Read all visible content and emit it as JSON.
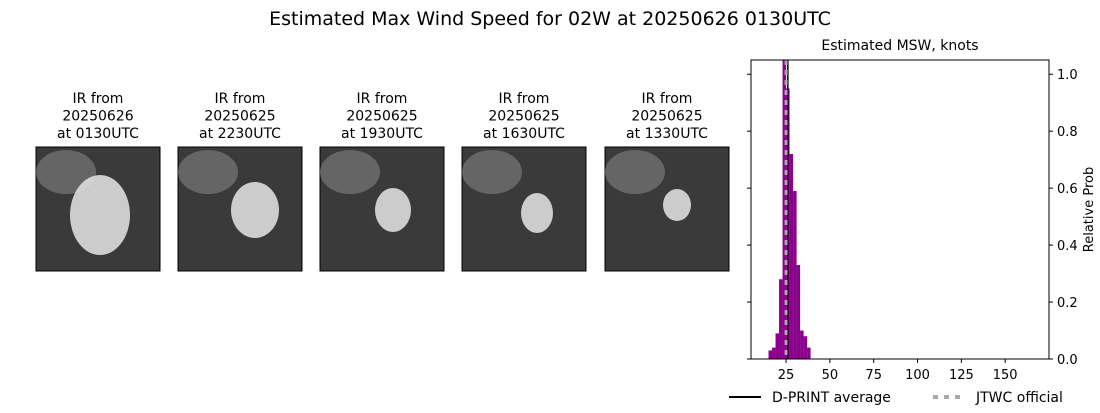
{
  "title": "Estimated Max Wind Speed for 02W at 20250626 0130UTC",
  "panels": [
    {
      "lines": [
        "IR from",
        "20250626",
        "at 0130UTC"
      ]
    },
    {
      "lines": [
        "IR from",
        "20250625",
        "at 2230UTC"
      ]
    },
    {
      "lines": [
        "IR from",
        "20250625",
        "at 1930UTC"
      ]
    },
    {
      "lines": [
        "IR from",
        "20250625",
        "at 1630UTC"
      ]
    },
    {
      "lines": [
        "IR from",
        "20250625",
        "at 1330UTC"
      ]
    }
  ],
  "chart_data": {
    "type": "histogram",
    "title": "Estimated MSW, knots",
    "y_label": "Relative Prob",
    "bins": [
      15,
      17,
      19,
      21,
      23,
      25,
      27,
      29,
      31,
      33,
      35,
      37,
      39
    ],
    "values": [
      0.03,
      0.04,
      0.09,
      0.28,
      1.05,
      0.95,
      0.72,
      0.59,
      0.33,
      0.1,
      0.08,
      0.04
    ],
    "color": "#8b008b",
    "xlim": [
      5,
      175
    ],
    "xticks": [
      25,
      50,
      75,
      100,
      125,
      150
    ],
    "ylim": [
      0,
      1.05
    ],
    "yticks": [
      {
        "value": 0,
        "label": "0.0"
      },
      {
        "value": 0.2,
        "label": "0.2"
      },
      {
        "value": 0.4,
        "label": "0.4"
      },
      {
        "value": 0.6,
        "label": "0.6"
      },
      {
        "value": 0.8,
        "label": "0.8"
      },
      {
        "value": 1,
        "label": "1.0"
      }
    ],
    "lines": [
      {
        "name": "D-PRINT average",
        "value": 26,
        "color": "#000000",
        "dashed": false
      },
      {
        "name": "JTWC official",
        "value": 25,
        "color": "#a9a9a9",
        "dashed": true
      }
    ]
  }
}
